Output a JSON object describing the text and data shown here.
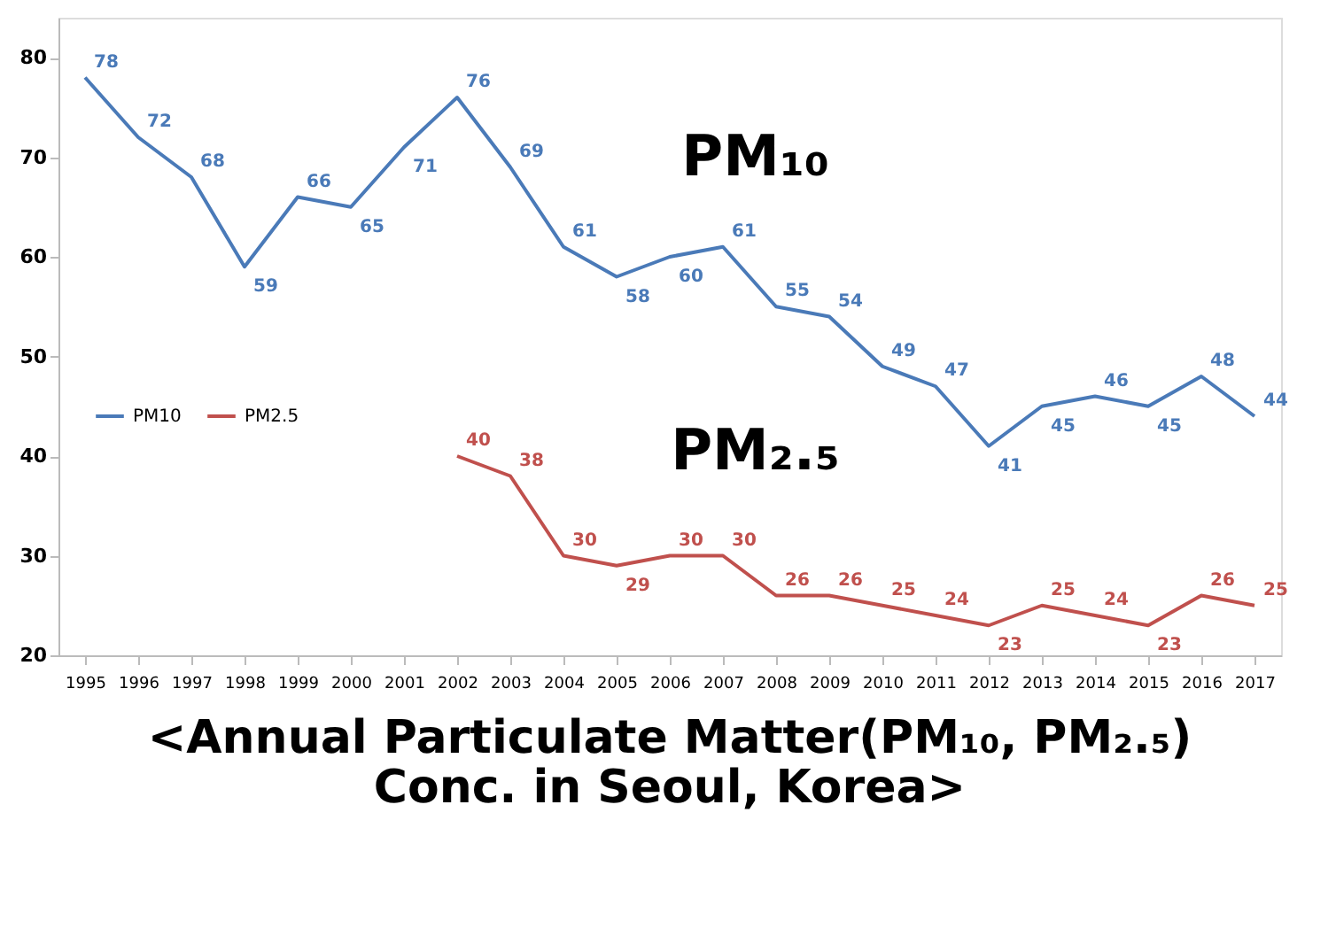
{
  "chart_data": {
    "type": "line",
    "title": [
      "<Annual Particulate Matter(PM₁₀, PM₂.₅)",
      "Conc. in Seoul, Korea>"
    ],
    "categories": [
      "1995",
      "1996",
      "1997",
      "1998",
      "1999",
      "2000",
      "2001",
      "2002",
      "2003",
      "2004",
      "2005",
      "2006",
      "2007",
      "2008",
      "2009",
      "2010",
      "2011",
      "2012",
      "2013",
      "2014",
      "2015",
      "2016",
      "2017"
    ],
    "series": [
      {
        "name": "PM10",
        "color": "#4a7ab8",
        "values": [
          78,
          72,
          68,
          59,
          66,
          65,
          71,
          76,
          69,
          61,
          58,
          60,
          61,
          55,
          54,
          49,
          47,
          41,
          45,
          46,
          45,
          48,
          44
        ]
      },
      {
        "name": "PM2.5",
        "color": "#c0504d",
        "values": [
          null,
          null,
          null,
          null,
          null,
          null,
          null,
          40,
          38,
          30,
          29,
          30,
          30,
          26,
          26,
          25,
          24,
          23,
          25,
          24,
          23,
          26,
          25
        ]
      }
    ],
    "ylim": [
      20,
      84
    ],
    "yticks": [
      20,
      30,
      40,
      50,
      60,
      70,
      80
    ],
    "grid": false,
    "legend": "left",
    "data_labels": true,
    "marker": "none",
    "line_style": "solid",
    "annotations": [
      "PM₁₀",
      "PM₂.₅"
    ]
  }
}
